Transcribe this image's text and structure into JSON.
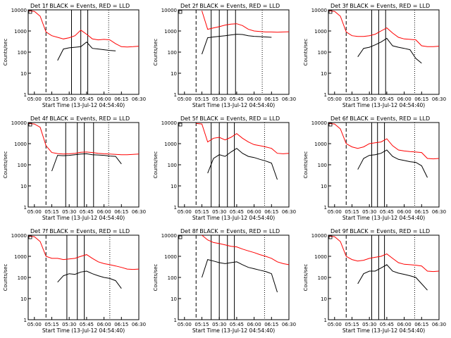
{
  "figure": {
    "panel_title_suffix": "BLACK = Events, RED = LLD",
    "xlabel": "Start Time (13-Jul-12 04:54:40)",
    "ylabel": "Counts/sec",
    "x_tick_labels": [
      "05:00",
      "05:15",
      "05:30",
      "05:45",
      "06:00",
      "06:15",
      "06:30"
    ],
    "y_tick_labels": [
      "1",
      "10",
      "100",
      "1000",
      "10000"
    ],
    "colors": {
      "events": "#000000",
      "lld": "#ff0000"
    }
  },
  "chart_data": [
    {
      "type": "line",
      "title": "Det 1f BLACK = Events, RED = LLD",
      "xlabel": "Start Time (13-Jul-12 04:54:40)",
      "ylabel": "Counts/sec",
      "xlim": [
        "04:54:40",
        "06:30"
      ],
      "ylim": [
        1,
        10000
      ],
      "yscale": "log",
      "x": [
        "04:55",
        "05:00",
        "05:05",
        "05:10",
        "05:15",
        "05:20",
        "05:25",
        "05:30",
        "05:35",
        "05:40",
        "05:45",
        "05:50",
        "05:55",
        "06:00",
        "06:05",
        "06:10",
        "06:15",
        "06:20",
        "06:25",
        "06:30"
      ],
      "series": [
        {
          "name": "BLACK = Events",
          "values": [
            null,
            null,
            null,
            null,
            null,
            40,
            140,
            160,
            170,
            180,
            300,
            150,
            140,
            130,
            120,
            115,
            null,
            null,
            null,
            null
          ]
        },
        {
          "name": "RED = LLD",
          "values": [
            9000,
            8500,
            5000,
            900,
            600,
            500,
            420,
            480,
            600,
            1100,
            700,
            420,
            380,
            400,
            380,
            250,
            180,
            175,
            180,
            190
          ]
        }
      ],
      "vlines_dashed": [
        "05:10"
      ],
      "vlines_solid": [
        "05:32",
        "05:40",
        "05:46"
      ],
      "vlines_dotted": [
        "06:04",
        "06:30"
      ]
    },
    {
      "type": "line",
      "title": "Det 2f BLACK = Events, RED = LLD",
      "xlabel": "Start Time (13-Jul-12 04:54:40)",
      "ylabel": "Counts/sec",
      "xlim": [
        "04:54:40",
        "06:30"
      ],
      "ylim": [
        1,
        10000
      ],
      "yscale": "log",
      "x": [
        "04:55",
        "05:00",
        "05:05",
        "05:10",
        "05:15",
        "05:20",
        "05:25",
        "05:30",
        "05:35",
        "05:40",
        "05:45",
        "05:50",
        "05:55",
        "06:00",
        "06:05",
        "06:10",
        "06:15",
        "06:20",
        "06:25",
        "06:30"
      ],
      "series": [
        {
          "name": "BLACK = Events",
          "values": [
            null,
            null,
            null,
            null,
            80,
            480,
            520,
            560,
            600,
            650,
            700,
            680,
            600,
            560,
            540,
            520,
            500,
            null,
            null,
            null
          ]
        },
        {
          "name": "RED = LLD",
          "values": [
            null,
            null,
            null,
            null,
            9000,
            1200,
            1400,
            1600,
            1900,
            2100,
            2200,
            1800,
            1200,
            1000,
            950,
            900,
            900,
            880,
            900,
            920
          ]
        }
      ],
      "vlines_dashed": [
        "05:10"
      ],
      "vlines_solid": [
        "05:23",
        "05:30",
        "05:37",
        "05:44"
      ],
      "vlines_dotted": [
        "06:07",
        "06:30"
      ]
    },
    {
      "type": "line",
      "title": "Det 3f BLACK = Events, RED = LLD",
      "xlabel": "Start Time (13-Jul-12 04:54:40)",
      "ylabel": "Counts/sec",
      "xlim": [
        "04:54:40",
        "06:30"
      ],
      "ylim": [
        1,
        10000
      ],
      "yscale": "log",
      "x": [
        "04:55",
        "05:00",
        "05:05",
        "05:10",
        "05:15",
        "05:20",
        "05:25",
        "05:30",
        "05:35",
        "05:40",
        "05:45",
        "05:50",
        "05:55",
        "06:00",
        "06:05",
        "06:10",
        "06:15",
        "06:20",
        "06:25",
        "06:30"
      ],
      "series": [
        {
          "name": "BLACK = Events",
          "values": [
            null,
            null,
            null,
            null,
            null,
            60,
            150,
            170,
            220,
            300,
            450,
            200,
            170,
            150,
            130,
            50,
            30,
            null,
            null,
            null
          ]
        },
        {
          "name": "RED = LLD",
          "values": [
            9000,
            8500,
            5000,
            900,
            600,
            550,
            550,
            600,
            700,
            1000,
            1400,
            800,
            500,
            420,
            400,
            380,
            200,
            180,
            180,
            190
          ]
        }
      ],
      "vlines_dashed": [
        "05:10"
      ],
      "vlines_solid": [
        "05:32",
        "05:38",
        "05:44"
      ],
      "vlines_dotted": [
        "06:09",
        "06:30"
      ]
    },
    {
      "type": "line",
      "title": "Det 4f BLACK = Events, RED = LLD",
      "xlabel": "Start Time (13-Jul-12 04:54:40)",
      "ylabel": "Counts/sec",
      "xlim": [
        "04:54:40",
        "06:30"
      ],
      "ylim": [
        1,
        10000
      ],
      "yscale": "log",
      "x": [
        "04:55",
        "05:00",
        "05:05",
        "05:10",
        "05:15",
        "05:20",
        "05:25",
        "05:30",
        "05:35",
        "05:40",
        "05:45",
        "05:50",
        "05:55",
        "06:00",
        "06:05",
        "06:10",
        "06:15",
        "06:20",
        "06:25",
        "06:30"
      ],
      "series": [
        {
          "name": "BLACK = Events",
          "values": [
            null,
            null,
            null,
            null,
            50,
            280,
            270,
            280,
            300,
            320,
            330,
            300,
            290,
            280,
            260,
            250,
            110,
            null,
            null,
            null
          ]
        },
        {
          "name": "RED = LLD",
          "values": [
            9000,
            8500,
            6000,
            800,
            380,
            340,
            320,
            330,
            350,
            390,
            400,
            380,
            350,
            330,
            320,
            310,
            300,
            300,
            310,
            320
          ]
        }
      ],
      "vlines_dashed": [
        "05:10"
      ],
      "vlines_solid": [
        "05:27",
        "05:37",
        "05:43",
        "05:51"
      ],
      "vlines_dotted": [
        "06:04",
        "06:30"
      ]
    },
    {
      "type": "line",
      "title": "Det 5f BLACK = Events, RED = LLD",
      "xlabel": "Start Time (13-Jul-12 04:54:40)",
      "ylabel": "Counts/sec",
      "xlim": [
        "04:54:40",
        "06:30"
      ],
      "ylim": [
        1,
        10000
      ],
      "yscale": "log",
      "x": [
        "04:55",
        "05:00",
        "05:05",
        "05:10",
        "05:15",
        "05:20",
        "05:25",
        "05:30",
        "05:35",
        "05:40",
        "05:45",
        "05:50",
        "05:55",
        "06:00",
        "06:05",
        "06:10",
        "06:15",
        "06:20",
        "06:25",
        "06:30"
      ],
      "series": [
        {
          "name": "BLACK = Events",
          "values": [
            null,
            null,
            null,
            null,
            null,
            40,
            200,
            300,
            250,
            400,
            600,
            350,
            250,
            220,
            180,
            150,
            120,
            20,
            null,
            null
          ]
        },
        {
          "name": "RED = LLD",
          "values": [
            null,
            null,
            null,
            9000,
            8500,
            1200,
            1800,
            2000,
            1500,
            2000,
            3000,
            1800,
            1200,
            900,
            800,
            700,
            600,
            350,
            330,
            350
          ]
        }
      ],
      "vlines_dashed": [
        "05:10"
      ],
      "vlines_solid": [
        "05:23",
        "05:30",
        "05:37",
        "05:43"
      ],
      "vlines_dotted": [
        "06:09",
        "06:30"
      ]
    },
    {
      "type": "line",
      "title": "Det 6f BLACK = Events, RED = LLD",
      "xlabel": "Start Time (13-Jul-12 04:54:40)",
      "ylabel": "Counts/sec",
      "xlim": [
        "04:54:40",
        "06:30"
      ],
      "ylim": [
        1,
        10000
      ],
      "yscale": "log",
      "x": [
        "04:55",
        "05:00",
        "05:05",
        "05:10",
        "05:15",
        "05:20",
        "05:25",
        "05:30",
        "05:35",
        "05:40",
        "05:45",
        "05:50",
        "05:55",
        "06:00",
        "06:05",
        "06:10",
        "06:15",
        "06:20",
        "06:25",
        "06:30"
      ],
      "series": [
        {
          "name": "BLACK = Events",
          "values": [
            null,
            null,
            null,
            null,
            null,
            60,
            200,
            280,
            300,
            350,
            500,
            250,
            180,
            160,
            140,
            130,
            90,
            25,
            null,
            null
          ]
        },
        {
          "name": "RED = LLD",
          "values": [
            9000,
            8500,
            5000,
            1000,
            700,
            600,
            700,
            1000,
            1100,
            1200,
            1700,
            800,
            500,
            450,
            420,
            400,
            380,
            200,
            190,
            200
          ]
        }
      ],
      "vlines_dashed": [
        "05:10"
      ],
      "vlines_solid": [
        "05:32",
        "05:37",
        "05:43"
      ],
      "vlines_dotted": [
        "06:09",
        "06:30"
      ]
    },
    {
      "type": "line",
      "title": "Det 7f BLACK = Events, RED = LLD",
      "xlabel": "Start Time (13-Jul-12 04:54:40)",
      "ylabel": "Counts/sec",
      "xlim": [
        "04:54:40",
        "06:30"
      ],
      "ylim": [
        1,
        10000
      ],
      "yscale": "log",
      "x": [
        "04:55",
        "05:00",
        "05:05",
        "05:10",
        "05:15",
        "05:20",
        "05:25",
        "05:30",
        "05:35",
        "05:40",
        "05:45",
        "05:50",
        "05:55",
        "06:00",
        "06:05",
        "06:10",
        "06:15",
        "06:20",
        "06:25",
        "06:30"
      ],
      "series": [
        {
          "name": "BLACK = Events",
          "values": [
            null,
            null,
            null,
            null,
            null,
            60,
            120,
            150,
            140,
            180,
            200,
            150,
            120,
            100,
            90,
            70,
            30,
            null,
            null,
            null
          ]
        },
        {
          "name": "RED = LLD",
          "values": [
            9000,
            8500,
            5000,
            1000,
            800,
            800,
            700,
            750,
            800,
            1000,
            1200,
            800,
            550,
            450,
            400,
            350,
            300,
            250,
            240,
            250
          ]
        }
      ],
      "vlines_dashed": [
        "05:10"
      ],
      "vlines_solid": [
        "05:28",
        "05:37",
        "05:43"
      ],
      "vlines_dotted": [
        "06:05",
        "06:30"
      ]
    },
    {
      "type": "line",
      "title": "Det 8f BLACK = Events, RED = LLD",
      "xlabel": "Start Time (13-Jul-12 04:54:40)",
      "ylabel": "Counts/sec",
      "xlim": [
        "04:54:40",
        "06:30"
      ],
      "ylim": [
        1,
        10000
      ],
      "yscale": "log",
      "x": [
        "04:55",
        "05:00",
        "05:05",
        "05:10",
        "05:15",
        "05:20",
        "05:25",
        "05:30",
        "05:35",
        "05:40",
        "05:45",
        "05:50",
        "05:55",
        "06:00",
        "06:05",
        "06:10",
        "06:15",
        "06:20",
        "06:25",
        "06:30"
      ],
      "series": [
        {
          "name": "BLACK = Events",
          "values": [
            null,
            null,
            null,
            null,
            100,
            700,
            600,
            500,
            450,
            500,
            550,
            400,
            300,
            260,
            220,
            190,
            150,
            20,
            null,
            null
          ]
        },
        {
          "name": "RED = LLD",
          "values": [
            null,
            null,
            null,
            null,
            10000,
            6000,
            4500,
            4000,
            3500,
            3000,
            2800,
            2200,
            1800,
            1500,
            1200,
            1000,
            800,
            550,
            450,
            400
          ]
        }
      ],
      "vlines_dashed": [
        "05:10"
      ],
      "vlines_solid": [
        "05:23",
        "05:30",
        "05:37",
        "05:43"
      ],
      "vlines_dotted": [
        "06:09",
        "06:30"
      ]
    },
    {
      "type": "line",
      "title": "Det 9f BLACK = Events, RED = LLD",
      "xlabel": "Start Time (13-Jul-12 04:54:40)",
      "ylabel": "Counts/sec",
      "xlim": [
        "04:54:40",
        "06:30"
      ],
      "ylim": [
        1,
        10000
      ],
      "yscale": "log",
      "x": [
        "04:55",
        "05:00",
        "05:05",
        "05:10",
        "05:15",
        "05:20",
        "05:25",
        "05:30",
        "05:35",
        "05:40",
        "05:45",
        "05:50",
        "05:55",
        "06:00",
        "06:05",
        "06:10",
        "06:15",
        "06:20",
        "06:25",
        "06:30"
      ],
      "series": [
        {
          "name": "BLACK = Events",
          "values": [
            null,
            null,
            null,
            null,
            null,
            50,
            150,
            200,
            200,
            280,
            400,
            200,
            160,
            140,
            120,
            100,
            50,
            25,
            null,
            null
          ]
        },
        {
          "name": "RED = LLD",
          "values": [
            9000,
            8500,
            5000,
            1000,
            700,
            600,
            650,
            800,
            900,
            1000,
            1300,
            800,
            500,
            420,
            400,
            380,
            350,
            200,
            190,
            200
          ]
        }
      ],
      "vlines_dashed": [
        "05:10"
      ],
      "vlines_solid": [
        "05:32",
        "05:38",
        "05:43"
      ],
      "vlines_dotted": [
        "06:09",
        "06:30"
      ]
    }
  ]
}
